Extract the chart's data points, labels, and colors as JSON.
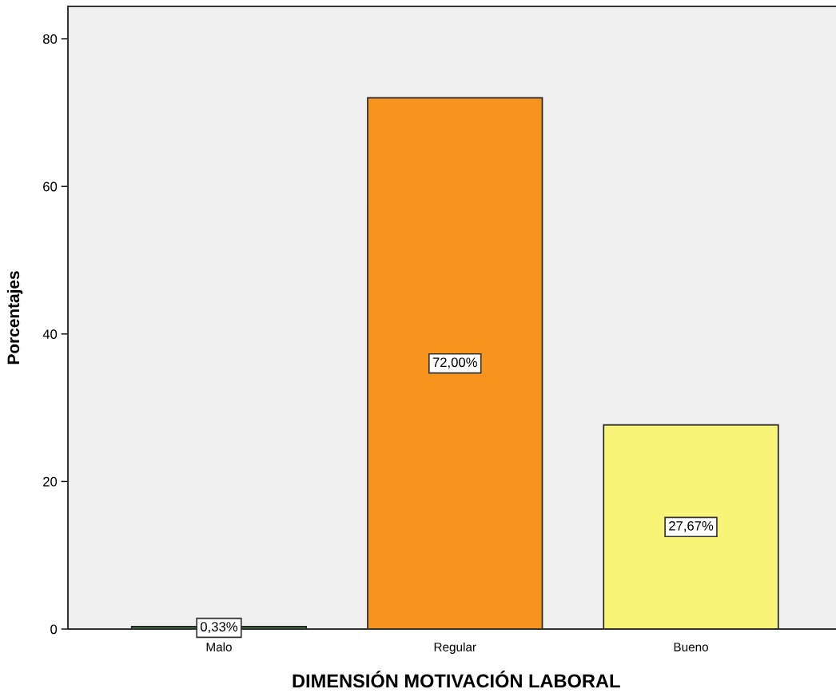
{
  "chart_data": {
    "type": "bar",
    "xlabel": "DIMENSIÓN MOTIVACIÓN LABORAL",
    "ylabel": "Porcentajes",
    "categories": [
      "Malo",
      "Regular",
      "Bueno"
    ],
    "values": [
      0.33,
      72.0,
      27.67
    ],
    "colors": [
      "#3d7a3d",
      "#f7941d",
      "#f8f478"
    ],
    "value_labels": [
      "0,33%",
      "72,00%",
      "27,67%"
    ],
    "ylim": [
      0,
      84.4
    ],
    "yticks": [
      0,
      20,
      40,
      60,
      80
    ],
    "grid": false,
    "legend": false
  }
}
